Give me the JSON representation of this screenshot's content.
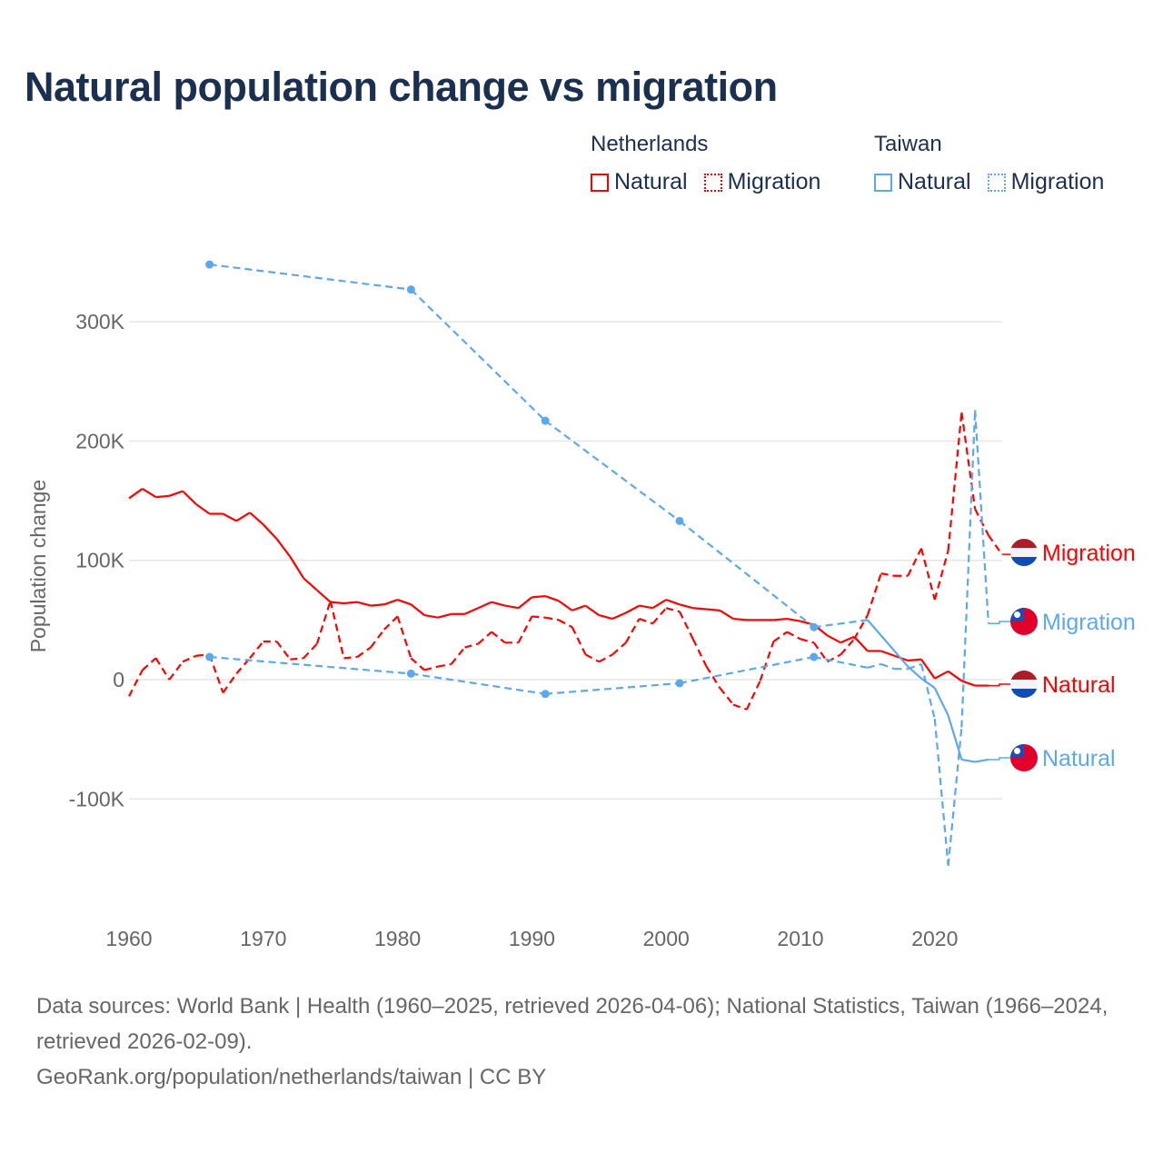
{
  "title": "Natural population change vs migration",
  "legend": {
    "groups": [
      {
        "name": "Netherlands",
        "items": [
          "Natural",
          "Migration"
        ],
        "color": "#ff0000"
      },
      {
        "name": "Taiwan",
        "items": [
          "Natural",
          "Migration"
        ],
        "color": "#5da8ec"
      }
    ]
  },
  "source": {
    "line1": "Data sources: World Bank | Health (1960–2025, retrieved 2026-04-06); National Statistics, Taiwan (1966–2024, retrieved 2026-02-09).",
    "line2": "GeoRank.org/population/netherlands/taiwan | CC BY"
  },
  "chart_data": {
    "type": "line",
    "title": "Natural population change vs migration",
    "xlabel": "",
    "ylabel": "Population change",
    "xlim": [
      1960,
      2025
    ],
    "ylim": [
      -180000,
      360000
    ],
    "xticks": [
      1960,
      1970,
      1980,
      1990,
      2000,
      2010,
      2020
    ],
    "yticks": [
      {
        "v": -100000,
        "label": "-100K"
      },
      {
        "v": 0,
        "label": "0"
      },
      {
        "v": 100000,
        "label": "100K"
      },
      {
        "v": 200000,
        "label": "200K"
      },
      {
        "v": 300000,
        "label": "300K"
      }
    ],
    "grid": true,
    "series": [
      {
        "name": "Netherlands Natural",
        "end_label": "Natural",
        "country": "netherlands",
        "kind": "natural",
        "color": "#ff0000",
        "x": [
          1960,
          1961,
          1962,
          1963,
          1964,
          1965,
          1966,
          1967,
          1968,
          1969,
          1970,
          1971,
          1972,
          1973,
          1974,
          1975,
          1976,
          1977,
          1978,
          1979,
          1980,
          1981,
          1982,
          1983,
          1984,
          1985,
          1986,
          1987,
          1988,
          1989,
          1990,
          1991,
          1992,
          1993,
          1994,
          1995,
          1996,
          1997,
          1998,
          1999,
          2000,
          2001,
          2002,
          2003,
          2004,
          2005,
          2006,
          2007,
          2008,
          2009,
          2010,
          2011,
          2012,
          2013,
          2014,
          2015,
          2016,
          2017,
          2018,
          2019,
          2020,
          2021,
          2022,
          2023,
          2024
        ],
        "y": [
          152000,
          160000,
          153000,
          154000,
          158000,
          147000,
          139000,
          139000,
          133000,
          140000,
          130000,
          118000,
          103000,
          85000,
          75000,
          65000,
          64000,
          65000,
          62000,
          63000,
          67000,
          63000,
          54000,
          52000,
          55000,
          55000,
          60000,
          65000,
          62000,
          60000,
          69000,
          70000,
          66000,
          58000,
          62000,
          54000,
          51000,
          56000,
          62000,
          60000,
          67000,
          63000,
          60000,
          59000,
          58000,
          51000,
          50000,
          50000,
          50000,
          51000,
          49000,
          46000,
          37000,
          31000,
          36000,
          24000,
          24000,
          20000,
          16000,
          17000,
          1000,
          7000,
          -1000,
          -5000,
          -5000
        ]
      },
      {
        "name": "Netherlands Migration",
        "end_label": "Migration",
        "country": "netherlands",
        "kind": "migration",
        "color": "#ff0000",
        "x": [
          1960,
          1961,
          1962,
          1963,
          1964,
          1965,
          1966,
          1967,
          1968,
          1969,
          1970,
          1971,
          1972,
          1973,
          1974,
          1975,
          1976,
          1977,
          1978,
          1979,
          1980,
          1981,
          1982,
          1983,
          1984,
          1985,
          1986,
          1987,
          1988,
          1989,
          1990,
          1991,
          1992,
          1993,
          1994,
          1995,
          1996,
          1997,
          1998,
          1999,
          2000,
          2001,
          2002,
          2003,
          2004,
          2005,
          2006,
          2007,
          2008,
          2009,
          2010,
          2011,
          2012,
          2013,
          2014,
          2015,
          2016,
          2017,
          2018,
          2019,
          2020,
          2021,
          2022,
          2023,
          2024,
          2025
        ],
        "y": [
          -14000,
          8000,
          18000,
          0,
          15000,
          20000,
          21000,
          -11000,
          5000,
          18000,
          32000,
          32000,
          17000,
          18000,
          30000,
          66000,
          18000,
          19000,
          27000,
          42000,
          53000,
          18000,
          8000,
          11000,
          13000,
          27000,
          30000,
          40000,
          31000,
          31000,
          53000,
          52000,
          50000,
          44000,
          21000,
          15000,
          21000,
          31000,
          51000,
          47000,
          60000,
          57000,
          34000,
          11000,
          -7000,
          -21000,
          -25000,
          -1000,
          32000,
          40000,
          34000,
          31000,
          15000,
          21000,
          34000,
          54000,
          89000,
          87000,
          87000,
          110000,
          67000,
          108000,
          224000,
          143000,
          121000,
          105000
        ]
      },
      {
        "name": "Taiwan Natural",
        "end_label": "Natural",
        "country": "taiwan",
        "kind": "natural",
        "color": "#5da8ec",
        "x": [
          1966,
          1981,
          1991,
          2001,
          2011,
          2015,
          2016,
          2017,
          2018,
          2019,
          2020,
          2021,
          2022,
          2023,
          2024
        ],
        "y": [
          348000,
          327000,
          217000,
          133000,
          44000,
          50000,
          37000,
          24000,
          11000,
          1000,
          -7000,
          -30000,
          -67000,
          -69000,
          -67000
        ]
      },
      {
        "name": "Taiwan Migration",
        "end_label": "Migration",
        "country": "taiwan",
        "kind": "migration",
        "color": "#5da8ec",
        "x": [
          1966,
          1981,
          1991,
          2001,
          2011,
          2015,
          2016,
          2017,
          2018,
          2019,
          2020,
          2021,
          2022,
          2023,
          2024
        ],
        "y": [
          19000,
          5000,
          -12000,
          -3000,
          19000,
          10000,
          13000,
          9000,
          9000,
          13000,
          -33000,
          -156000,
          -40000,
          226000,
          47000
        ]
      }
    ]
  }
}
